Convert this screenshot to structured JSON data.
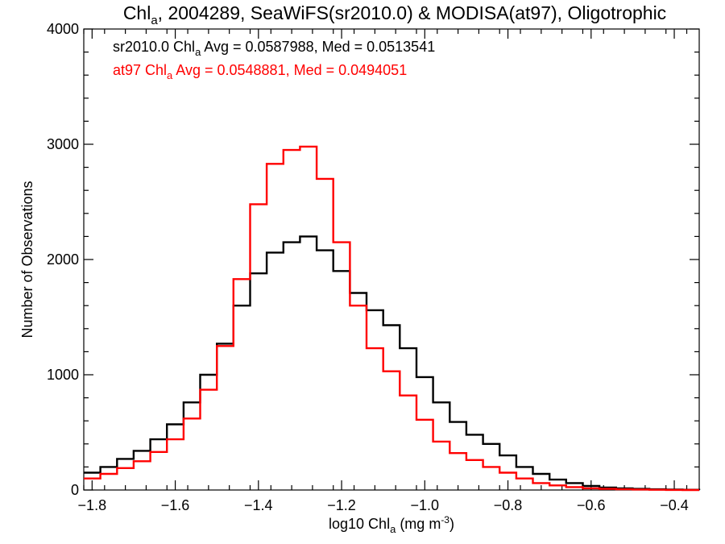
{
  "chart_data": {
    "type": "line",
    "title": {
      "pre": "Chl",
      "sub": "a",
      "post": ", 2004289, SeaWiFS(sr2010.0) & MODISA(at97), Oligotrophic"
    },
    "xlabel": {
      "pre": "log10 Chl",
      "sub": "a",
      "post": " (mg m",
      "sup": "-3",
      "end": ")"
    },
    "ylabel": "Number of Observations",
    "xlim": [
      -1.82,
      -0.34
    ],
    "ylim": [
      0,
      4000
    ],
    "x_ticks": [
      -1.8,
      -1.6,
      -1.4,
      -1.2,
      -1.0,
      -0.8,
      -0.6,
      -0.4
    ],
    "x_tick_labels": [
      "−1.8",
      "−1.6",
      "−1.4",
      "−1.2",
      "−1.0",
      "−0.8",
      "−0.6",
      "−0.4"
    ],
    "y_ticks": [
      0,
      1000,
      2000,
      3000,
      4000
    ],
    "y_tick_labels": [
      "0",
      "1000",
      "2000",
      "3000",
      "4000"
    ],
    "grid": false,
    "annotations": [
      {
        "pre": "sr2010.0 Chl",
        "sub": "a",
        "post": " Avg = 0.0587988, Med = 0.0513541",
        "color": "#000000"
      },
      {
        "pre": "at97 Chl",
        "sub": "a",
        "post": " Avg = 0.0548881, Med = 0.0494051",
        "color": "#ff0000"
      }
    ],
    "series": [
      {
        "color": "#000000",
        "x": [
          -1.82,
          -1.78,
          -1.74,
          -1.7,
          -1.66,
          -1.62,
          -1.58,
          -1.54,
          -1.5,
          -1.46,
          -1.42,
          -1.38,
          -1.34,
          -1.3,
          -1.26,
          -1.22,
          -1.18,
          -1.14,
          -1.1,
          -1.06,
          -1.02,
          -0.98,
          -0.94,
          -0.9,
          -0.86,
          -0.82,
          -0.78,
          -0.74,
          -0.7,
          -0.66,
          -0.62,
          -0.58,
          -0.54,
          -0.5,
          -0.46,
          -0.42,
          -0.38,
          -0.34
        ],
        "y": [
          150,
          200,
          270,
          340,
          440,
          570,
          760,
          1000,
          1270,
          1600,
          1880,
          2060,
          2150,
          2200,
          2080,
          1900,
          1710,
          1560,
          1430,
          1230,
          980,
          760,
          590,
          480,
          400,
          300,
          200,
          140,
          90,
          60,
          35,
          22,
          15,
          10,
          6,
          4,
          2,
          0
        ]
      },
      {
        "color": "#ff0000",
        "x": [
          -1.82,
          -1.78,
          -1.74,
          -1.7,
          -1.66,
          -1.62,
          -1.58,
          -1.54,
          -1.5,
          -1.46,
          -1.42,
          -1.38,
          -1.34,
          -1.3,
          -1.26,
          -1.22,
          -1.18,
          -1.14,
          -1.1,
          -1.06,
          -1.02,
          -0.98,
          -0.94,
          -0.9,
          -0.86,
          -0.82,
          -0.78,
          -0.74,
          -0.7,
          -0.66,
          -0.62,
          -0.58,
          -0.54,
          -0.5,
          -0.46,
          -0.42,
          -0.38,
          -0.34
        ],
        "y": [
          100,
          140,
          190,
          250,
          330,
          440,
          620,
          870,
          1250,
          1830,
          2480,
          2830,
          2950,
          2980,
          2700,
          2150,
          1600,
          1230,
          1030,
          820,
          610,
          420,
          320,
          260,
          200,
          150,
          100,
          60,
          40,
          25,
          15,
          10,
          6,
          4,
          2,
          1,
          0,
          0
        ]
      }
    ]
  }
}
